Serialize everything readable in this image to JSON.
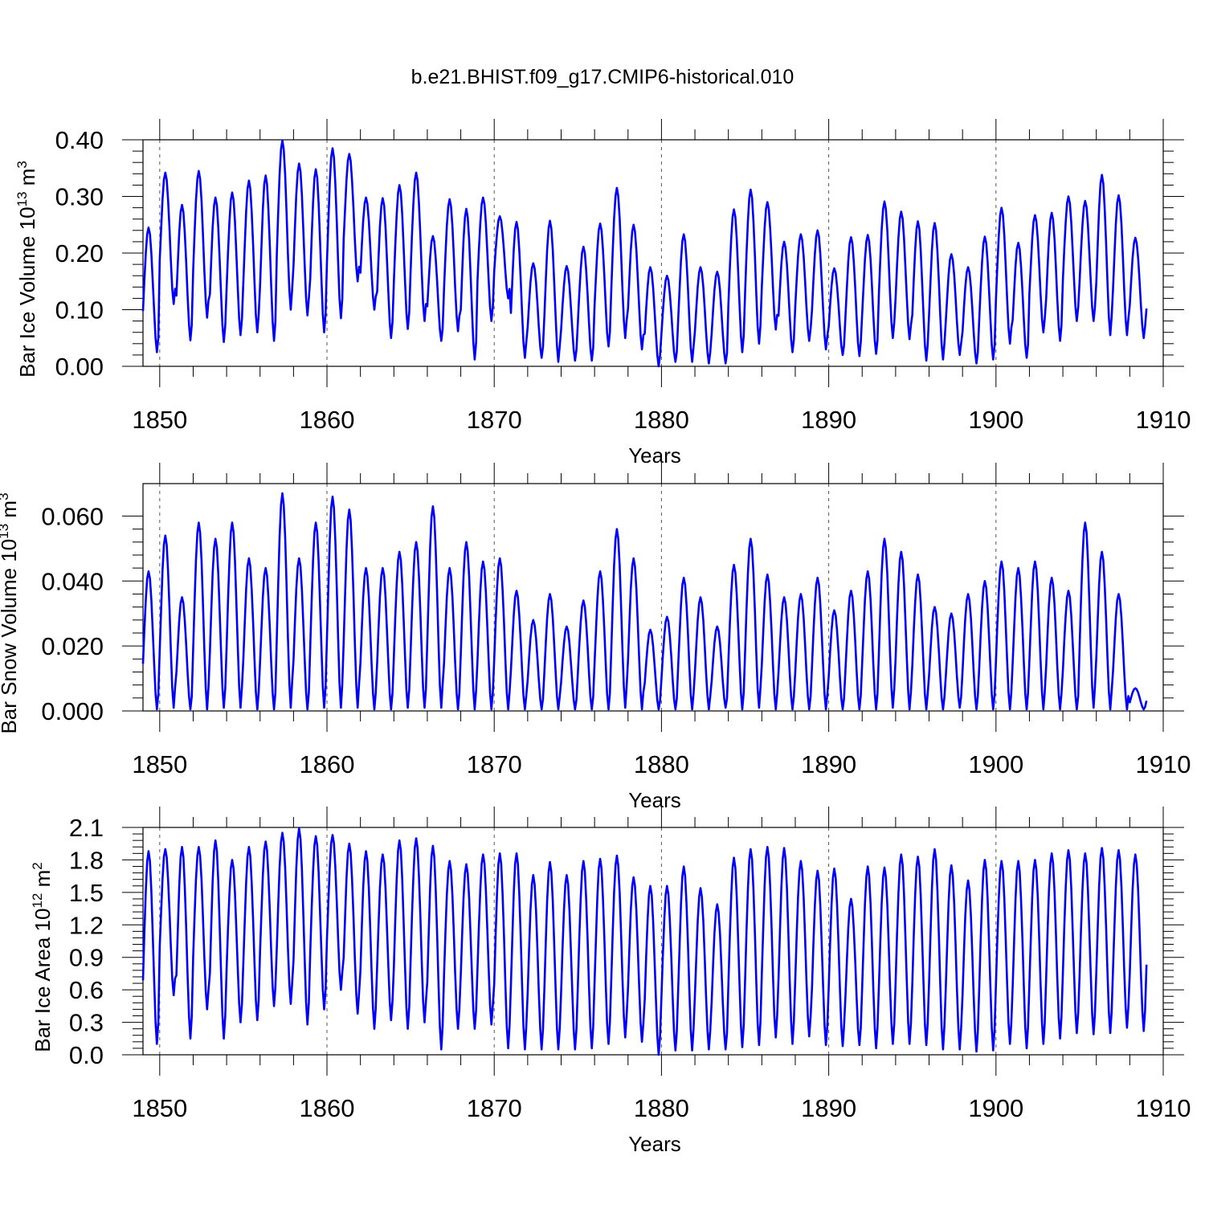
{
  "title": "b.e21.BHIST.f09_g17.CMIP6-historical.010",
  "series_color": "#0000ff",
  "chart_data": [
    {
      "type": "line",
      "xlabel": "Years",
      "ylabel": "Bar Ice Volume 10",
      "ylabel_exp": "13",
      "ylabel_unit": " m",
      "ylabel_unit_exp": "3",
      "xlim": [
        1849,
        1910
      ],
      "ylim": [
        0,
        0.4
      ],
      "xticks": [
        1850,
        1860,
        1870,
        1880,
        1890,
        1900,
        1910
      ],
      "yticks": [
        0.0,
        0.1,
        0.2,
        0.3,
        0.4
      ],
      "ytick_labels": [
        "0.00",
        "0.10",
        "0.20",
        "0.30",
        "0.40"
      ],
      "ylim_clip": 0.4,
      "annual_max": [
        0.245,
        0.342,
        0.285,
        0.345,
        0.298,
        0.307,
        0.328,
        0.337,
        0.399,
        0.358,
        0.348,
        0.385,
        0.375,
        0.298,
        0.297,
        0.32,
        0.342,
        0.23,
        0.295,
        0.278,
        0.298,
        0.265,
        0.255,
        0.182,
        0.257,
        0.177,
        0.211,
        0.252,
        0.315,
        0.25,
        0.175,
        0.16,
        0.233,
        0.175,
        0.167,
        0.277,
        0.312,
        0.29,
        0.22,
        0.233,
        0.24,
        0.173,
        0.228,
        0.232,
        0.291,
        0.273,
        0.256,
        0.253,
        0.198,
        0.175,
        0.229,
        0.28,
        0.218,
        0.267,
        0.271,
        0.3,
        0.292,
        0.338,
        0.302,
        0.227
      ],
      "annual_min": [
        0.025,
        0.11,
        0.046,
        0.086,
        0.043,
        0.055,
        0.06,
        0.045,
        0.1,
        0.09,
        0.06,
        0.085,
        0.15,
        0.1,
        0.05,
        0.066,
        0.08,
        0.045,
        0.062,
        0.012,
        0.08,
        0.12,
        0.015,
        0.015,
        0.008,
        0.01,
        0.01,
        0.035,
        0.05,
        0.03,
        0.0,
        0.008,
        0.008,
        0.005,
        0.005,
        0.025,
        0.04,
        0.065,
        0.025,
        0.045,
        0.03,
        0.02,
        0.018,
        0.022,
        0.05,
        0.048,
        0.01,
        0.012,
        0.02,
        0.005,
        0.012,
        0.04,
        0.015,
        0.06,
        0.045,
        0.08,
        0.08,
        0.055,
        0.055,
        0.05
      ]
    },
    {
      "type": "line",
      "xlabel": "Years",
      "ylabel": "Bar Snow Volume 10",
      "ylabel_exp": "13",
      "ylabel_unit": " m",
      "ylabel_unit_exp": "3",
      "xlim": [
        1849,
        1910
      ],
      "ylim": [
        0,
        0.07
      ],
      "xticks": [
        1850,
        1860,
        1870,
        1880,
        1890,
        1900,
        1910
      ],
      "yticks": [
        0.0,
        0.02,
        0.04,
        0.06
      ],
      "ytick_labels": [
        "0.000",
        "0.020",
        "0.040",
        "0.060"
      ],
      "annual_max": [
        0.043,
        0.054,
        0.035,
        0.058,
        0.053,
        0.058,
        0.047,
        0.044,
        0.067,
        0.047,
        0.058,
        0.066,
        0.062,
        0.044,
        0.044,
        0.049,
        0.052,
        0.063,
        0.044,
        0.052,
        0.046,
        0.047,
        0.037,
        0.028,
        0.036,
        0.026,
        0.034,
        0.043,
        0.056,
        0.047,
        0.025,
        0.029,
        0.041,
        0.035,
        0.026,
        0.045,
        0.053,
        0.042,
        0.035,
        0.036,
        0.041,
        0.031,
        0.037,
        0.043,
        0.053,
        0.049,
        0.042,
        0.032,
        0.03,
        0.036,
        0.04,
        0.046,
        0.044,
        0.046,
        0.041,
        0.037,
        0.058,
        0.049,
        0.036,
        0.007
      ],
      "annual_min": [
        0.0005,
        0.001,
        0.0005,
        0.0005,
        0.001,
        0.001,
        0.0005,
        0.0005,
        0.001,
        0.0005,
        0.001,
        0.001,
        0.001,
        0.0005,
        0.0005,
        0.001,
        0.001,
        0.001,
        0.0005,
        0.0005,
        0.0005,
        0.0005,
        0.0005,
        0.0005,
        0.0005,
        0.0005,
        0.0005,
        0.0005,
        0.001,
        0.0005,
        0.0005,
        0.0005,
        0.0005,
        0.0005,
        0.001,
        0.0005,
        0.001,
        0.0005,
        0.0005,
        0.0005,
        0.0005,
        0.0005,
        0.0005,
        0.0005,
        0.001,
        0.0005,
        0.0005,
        0.0005,
        0.001,
        0.0005,
        0.0005,
        0.0005,
        0.0005,
        0.0005,
        0.0005,
        0.0005,
        0.001,
        0.0005,
        0.0005,
        0.0005
      ]
    },
    {
      "type": "line",
      "xlabel": "Years",
      "ylabel": "Bar Ice Area 10",
      "ylabel_exp": "12",
      "ylabel_unit": " m",
      "ylabel_unit_exp": "2",
      "xlim": [
        1849,
        1910
      ],
      "ylim": [
        0,
        2.1
      ],
      "xticks": [
        1850,
        1860,
        1870,
        1880,
        1890,
        1900,
        1910
      ],
      "yticks": [
        0.0,
        0.3,
        0.6,
        0.9,
        1.2,
        1.5,
        1.8,
        2.1
      ],
      "ytick_labels": [
        "0.0",
        "0.3",
        "0.6",
        "0.9",
        "1.2",
        "1.5",
        "1.8",
        "2.1"
      ],
      "annual_max": [
        1.88,
        1.9,
        1.92,
        1.92,
        1.98,
        1.8,
        1.92,
        1.97,
        2.05,
        2.09,
        2.02,
        2.03,
        1.95,
        1.88,
        1.85,
        1.98,
        2.0,
        1.93,
        1.79,
        1.76,
        1.85,
        1.86,
        1.86,
        1.66,
        1.78,
        1.66,
        1.79,
        1.81,
        1.84,
        1.64,
        1.56,
        1.56,
        1.74,
        1.54,
        1.39,
        1.82,
        1.9,
        1.92,
        1.91,
        1.79,
        1.7,
        1.72,
        1.44,
        1.74,
        1.73,
        1.85,
        1.83,
        1.9,
        1.75,
        1.61,
        1.8,
        1.79,
        1.79,
        1.8,
        1.86,
        1.89,
        1.86,
        1.91,
        1.89,
        1.85
      ],
      "annual_min": [
        0.1,
        0.55,
        0.15,
        0.42,
        0.15,
        0.3,
        0.32,
        0.45,
        0.47,
        0.28,
        0.42,
        0.6,
        0.38,
        0.24,
        0.32,
        0.24,
        0.3,
        0.05,
        0.24,
        0.24,
        0.28,
        0.06,
        0.05,
        0.05,
        0.05,
        0.05,
        0.06,
        0.1,
        0.16,
        0.12,
        0.0,
        0.04,
        0.04,
        0.05,
        0.05,
        0.07,
        0.09,
        0.16,
        0.1,
        0.17,
        0.09,
        0.08,
        0.09,
        0.06,
        0.1,
        0.1,
        0.09,
        0.05,
        0.05,
        0.03,
        0.04,
        0.1,
        0.06,
        0.1,
        0.15,
        0.2,
        0.19,
        0.2,
        0.25,
        0.22
      ]
    }
  ]
}
